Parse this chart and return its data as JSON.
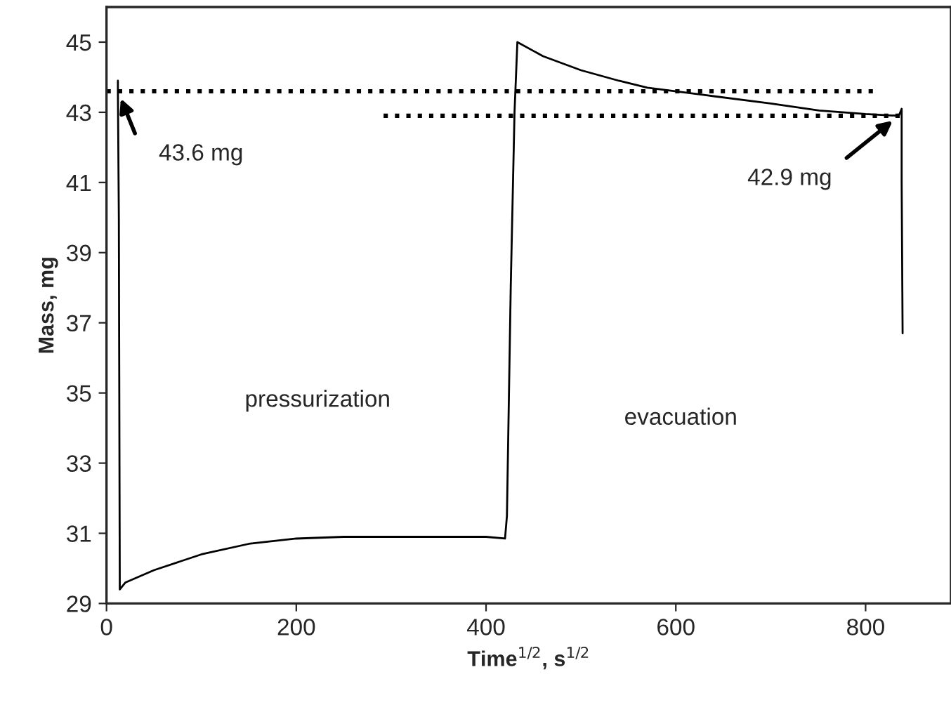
{
  "chart_data": {
    "type": "line",
    "xlabel": "Time$^{1/2}$, s$^{1/2}$",
    "ylabel": "Mass, mg",
    "xlim": [
      0,
      890
    ],
    "ylim": [
      29,
      46
    ],
    "xticks": [
      0,
      200,
      400,
      600,
      800
    ],
    "yticks": [
      29,
      31,
      33,
      35,
      37,
      39,
      41,
      43,
      45
    ],
    "grid": false,
    "legend": false,
    "marker": "none",
    "series": [
      {
        "color": "#000000",
        "line_style": "solid",
        "x": [
          12,
          12,
          13,
          14,
          20,
          50,
          100,
          150,
          200,
          250,
          300,
          350,
          400,
          420,
          422,
          426,
          430,
          433,
          460,
          500,
          540,
          570,
          628,
          700,
          751,
          800,
          835,
          838,
          838,
          839
        ],
        "values": [
          43.9,
          43.6,
          40,
          29.4,
          29.6,
          29.95,
          30.4,
          30.7,
          30.85,
          30.9,
          30.9,
          30.9,
          30.9,
          30.85,
          31.5,
          38,
          43,
          45,
          44.6,
          44.2,
          43.9,
          43.7,
          43.5,
          43.25,
          43.05,
          42.95,
          42.9,
          43.1,
          41,
          36.7
        ]
      },
      {
        "color": "#000000",
        "line_style": "dotted",
        "x": [
          0,
          810
        ],
        "values": [
          43.6,
          43.6
        ]
      },
      {
        "color": "#000000",
        "line_style": "dotted",
        "x": [
          292,
          838
        ],
        "values": [
          42.9,
          42.9
        ]
      }
    ],
    "annotations": [
      {
        "text": "43.6 mg",
        "x": 12,
        "y": 43.6
      },
      {
        "text": "42.9 mg",
        "x": 835,
        "y": 42.9
      },
      "pressurization",
      "evacuation"
    ]
  }
}
